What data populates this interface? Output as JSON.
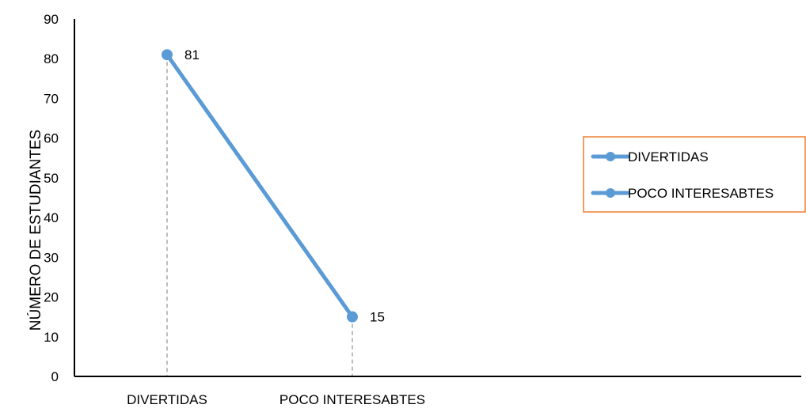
{
  "colors": {
    "series": "#5b9bd5",
    "legend_border": "#ed7d31",
    "drop_line": "#a6a6a6",
    "axis": "#000000"
  },
  "chart_data": {
    "type": "line",
    "categories": [
      "DIVERTIDAS",
      "POCO INTERESABTES"
    ],
    "series": [
      {
        "values": [
          81,
          15
        ]
      }
    ],
    "data_labels": [
      "81",
      "15"
    ],
    "ylabel": "NÚMERO DE ESTUDIANTES",
    "xlabel": "",
    "ylim": [
      0,
      90
    ],
    "y_ticks": [
      0,
      10,
      20,
      30,
      40,
      50,
      60,
      70,
      80,
      90
    ],
    "grid": false,
    "drop_lines": true,
    "legend": {
      "position": "right",
      "entries": [
        "DIVERTIDAS",
        "POCO INTERESABTES"
      ]
    }
  }
}
